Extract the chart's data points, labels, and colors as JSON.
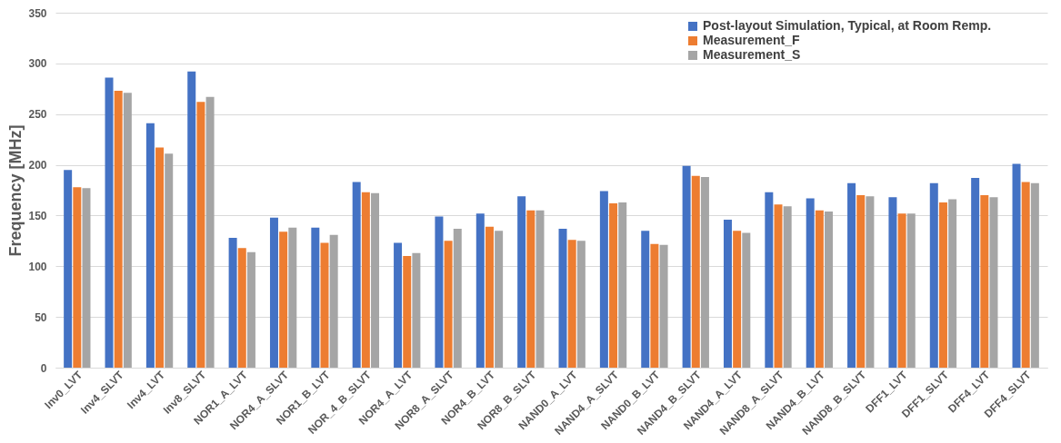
{
  "chart_data": {
    "type": "bar",
    "ylabel": "Frequency [MHz]",
    "categories": [
      "Inv0_LVT",
      "Inv4_SLVT",
      "Inv4_LVT",
      "Inv8_SLVT",
      "NOR1_A_LVT",
      "NOR4_A_SLVT",
      "NOR1_B_LVT",
      "NOR_4_B_SLVT",
      "NOR4_A_LVT",
      "NOR8_A_SLVT",
      "NOR4_B_LVT",
      "NOR8_B_SLVT",
      "NAND0_A_LVT",
      "NAND4_A_SLVT",
      "NAND0_B_LVT",
      "NAND4_B_SLVT",
      "NAND4_A_LVT",
      "NAND8_A_SLVT",
      "NAND4_B_LVT",
      "NAND8_B_SLVT",
      "DFF1_LVT",
      "DFF1_SLVT",
      "DFF4_LVT",
      "DFF4_SLVT"
    ],
    "series": [
      {
        "name": "Post-layout Simulation, Typical, at Room Remp.",
        "color": "#4472c4",
        "values": [
          195,
          286,
          241,
          292,
          128,
          148,
          138,
          183,
          123,
          149,
          152,
          169,
          137,
          174,
          135,
          199,
          146,
          173,
          167,
          182,
          168,
          182,
          187,
          201
        ]
      },
      {
        "name": "Measurement_F",
        "color": "#ed7d31",
        "values": [
          178,
          273,
          217,
          262,
          118,
          134,
          123,
          173,
          110,
          125,
          139,
          155,
          126,
          162,
          122,
          189,
          135,
          161,
          155,
          170,
          152,
          163,
          170,
          183
        ]
      },
      {
        "name": "Measurement_S",
        "color": "#a5a5a5",
        "values": [
          177,
          271,
          211,
          267,
          114,
          138,
          131,
          172,
          113,
          137,
          135,
          155,
          125,
          163,
          121,
          188,
          133,
          159,
          154,
          169,
          152,
          166,
          168,
          182
        ]
      }
    ],
    "ylim": [
      0,
      350
    ],
    "yticks": [
      0,
      50,
      100,
      150,
      200,
      250,
      300,
      350
    ],
    "grid": "y",
    "legend": "top right"
  }
}
